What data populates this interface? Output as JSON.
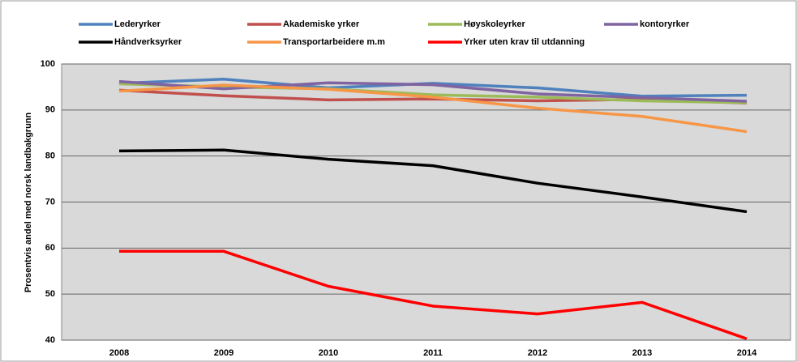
{
  "chart_data": {
    "type": "line",
    "y_label": "Prosentvis andel med norsk  landbakgrunn",
    "categories": [
      "2008",
      "2009",
      "2010",
      "2011",
      "2012",
      "2013",
      "2014"
    ],
    "series": [
      {
        "name": "Lederyrker",
        "color": "#4f81bd",
        "values": [
          95.8,
          96.7,
          94.8,
          95.8,
          94.8,
          93.0,
          93.2
        ]
      },
      {
        "name": "Akademiske yrker",
        "color": "#c0504d",
        "values": [
          94.3,
          93.1,
          92.2,
          92.4,
          92.0,
          92.3,
          91.5
        ]
      },
      {
        "name": "Høyskoleyrker",
        "color": "#9bbb59",
        "values": [
          95.7,
          95.0,
          94.6,
          93.3,
          92.8,
          92.0,
          91.6
        ]
      },
      {
        "name": "kontoryrker",
        "color": "#8064a2",
        "values": [
          96.2,
          94.6,
          95.9,
          95.5,
          93.5,
          92.7,
          91.9
        ]
      },
      {
        "name": "Håndverksyrker",
        "color": "#000000",
        "values": [
          81.1,
          81.3,
          79.3,
          77.9,
          74.1,
          71.1,
          67.9
        ]
      },
      {
        "name": "Transportarbeidere m.m",
        "color": "#f79646",
        "values": [
          94.1,
          95.4,
          94.5,
          92.8,
          90.4,
          88.6,
          85.3
        ]
      },
      {
        "name": "Yrker uten krav til utdanning",
        "color": "#ff0000",
        "values": [
          59.3,
          59.3,
          51.7,
          47.4,
          45.7,
          48.2,
          40.3
        ]
      }
    ],
    "ylim": [
      40,
      100
    ],
    "yticks": [
      40,
      50,
      60,
      70,
      80,
      90,
      100
    ],
    "grid": true
  }
}
